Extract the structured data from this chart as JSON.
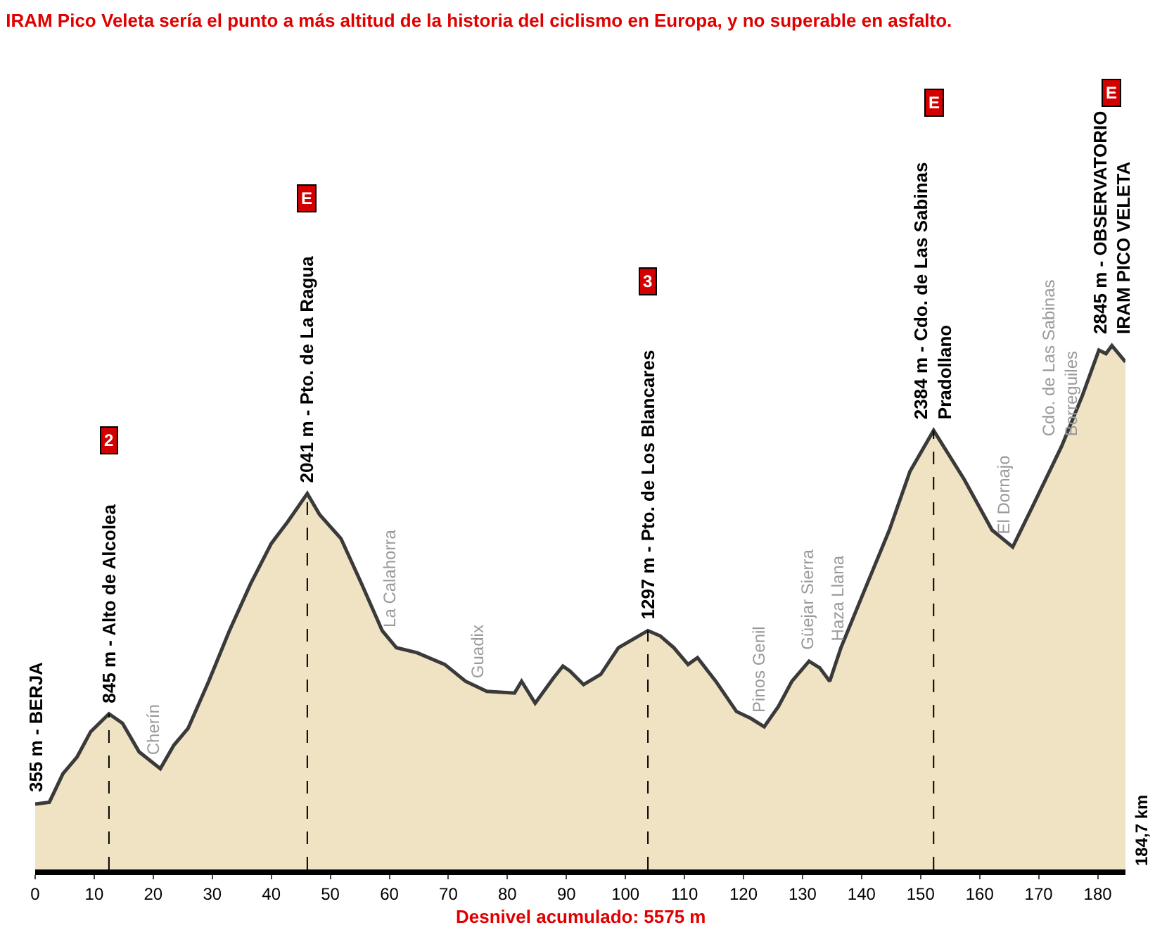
{
  "chart_data": {
    "type": "area",
    "title": "IRAM Pico Veleta sería el punto a más altitud de la historia del ciclismo en Europa, y no superable en asfalto.",
    "xlim": [
      0,
      184.7
    ],
    "xticks": [
      0,
      10,
      20,
      30,
      40,
      50,
      60,
      70,
      80,
      90,
      100,
      110,
      120,
      130,
      140,
      150,
      160,
      170,
      180
    ],
    "tick_labels": "x",
    "series": [
      {
        "color": "#efe3c3",
        "x": [
          0,
          2.4,
          4.7,
          7.1,
          9.4,
          12.5,
          14.8,
          17.6,
          21.2,
          23.5,
          25.9,
          29.4,
          32.9,
          36.5,
          40,
          42.8,
          46.1,
          48.2,
          51.8,
          55.3,
          58.8,
          61.2,
          64.7,
          69.4,
          72.9,
          76.5,
          81.2,
          82.4,
          84.7,
          87.8,
          89.4,
          90.6,
          92.9,
          95.8,
          98.8,
          103.8,
          105.9,
          108.2,
          110.6,
          112.2,
          115.3,
          118.8,
          121.2,
          123.5,
          125.9,
          128.2,
          131.1,
          132.9,
          134.6,
          136.5,
          140,
          144.7,
          148.2,
          152.2,
          157.4,
          162.1,
          165.6,
          169.1,
          173.9,
          177.4,
          180.2,
          181.4,
          182.4,
          184.7
        ],
        "values": [
          355,
          365,
          520,
          611,
          748,
          845,
          794,
          639,
          547,
          675,
          766,
          1022,
          1296,
          1551,
          1770,
          1889,
          2041,
          1926,
          1797,
          1551,
          1296,
          1204,
          1177,
          1113,
          1022,
          967,
          958,
          1022,
          903,
          1040,
          1104,
          1077,
          1004,
          1059,
          1204,
          1297,
          1268,
          1204,
          1113,
          1150,
          1022,
          858,
          821,
          775,
          885,
          1022,
          1131,
          1095,
          1022,
          1204,
          1478,
          1843,
          2162,
          2384,
          2117,
          1843,
          1751,
          1980,
          2299,
          2573,
          2820,
          2801,
          2845,
          2756
        ],
        "value_labels": [
          "355 m - BERJA",
          null,
          null,
          null,
          null,
          "845 m - Alto de Alcolea",
          null,
          null,
          null,
          null,
          null,
          null,
          null,
          null,
          null,
          null,
          "2041 m - Pto. de La Ragua",
          null,
          null,
          null,
          null,
          null,
          null,
          null,
          null,
          null,
          null,
          null,
          null,
          null,
          null,
          null,
          null,
          null,
          null,
          "1297 m - Pto. de Los Blancares",
          null,
          null,
          null,
          null,
          null,
          null,
          null,
          null,
          null,
          null,
          null,
          null,
          null,
          null,
          null,
          null,
          null,
          "2384 m - Cdo. de Las Sabinas\nPradollano",
          null,
          null,
          null,
          null,
          null,
          null,
          null,
          null,
          "2845 m - OBSERVATORIO\nIRAM PICO VELETA",
          null
        ]
      }
    ],
    "ref_lines": [
      {
        "axis": "x",
        "value": 12.5,
        "line_style": "dashed"
      },
      {
        "axis": "x",
        "value": 46.1,
        "line_style": "dashed"
      },
      {
        "axis": "x",
        "value": 103.8,
        "line_style": "dashed"
      },
      {
        "axis": "x",
        "value": 152.2,
        "line_style": "dashed"
      }
    ],
    "annotations": [
      "184,7 km",
      "Desnivel acumulado: 5575 m",
      {
        "text": "Cherín",
        "x": 20,
        "y": 560
      },
      {
        "text": "La Calahorra",
        "x": 60.2,
        "y": 1250
      },
      {
        "text": "Guadix",
        "x": 75,
        "y": 975
      },
      {
        "text": "Pinos Genil",
        "x": 122.6,
        "y": 790
      },
      {
        "text": "Güejar Sierra",
        "x": 130.8,
        "y": 1130
      },
      {
        "text": "Haza Llana",
        "x": 136,
        "y": 1180
      },
      {
        "text": "El Dornajo",
        "x": 164,
        "y": 1760
      },
      {
        "text": "Cdo. de Las Sabinas\nBorreguiles",
        "x": 173.6,
        "y": 2290
      },
      "2",
      "E",
      "3",
      "E",
      "E"
    ]
  }
}
